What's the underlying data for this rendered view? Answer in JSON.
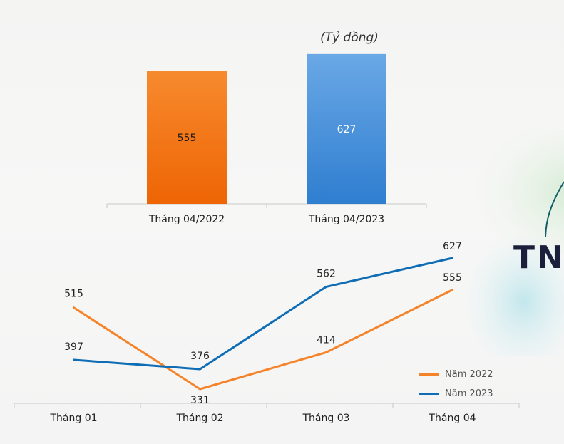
{
  "brand_text": "TN",
  "colors": {
    "orange": "#f5832a",
    "orange_dark": "#f06a05",
    "blue": "#0f6db5",
    "blue_light": "#5a9ddf",
    "axis": "#c8c8c8",
    "text": "#222222"
  },
  "chart_data": [
    {
      "type": "bar",
      "title": "",
      "unit_label": "(Tỷ đồng)",
      "categories": [
        "Tháng 04/2022",
        "Tháng 04/2023"
      ],
      "values": [
        555,
        627
      ],
      "bar_colors": [
        "#f06a05",
        "#3b86d6"
      ],
      "ylim": [
        0,
        700
      ],
      "grid": false,
      "legend": "none"
    },
    {
      "type": "line",
      "title": "",
      "categories": [
        "Tháng 01",
        "Tháng 02",
        "Tháng 03",
        "Tháng 04"
      ],
      "series": [
        {
          "name": "Năm 2022",
          "values": [
            515,
            331,
            414,
            555
          ],
          "color": "#f5832a"
        },
        {
          "name": "Năm 2023",
          "values": [
            397,
            376,
            562,
            627
          ],
          "color": "#0f6db5"
        }
      ],
      "ylim": [
        300,
        660
      ],
      "grid": false,
      "legend": "right"
    }
  ]
}
